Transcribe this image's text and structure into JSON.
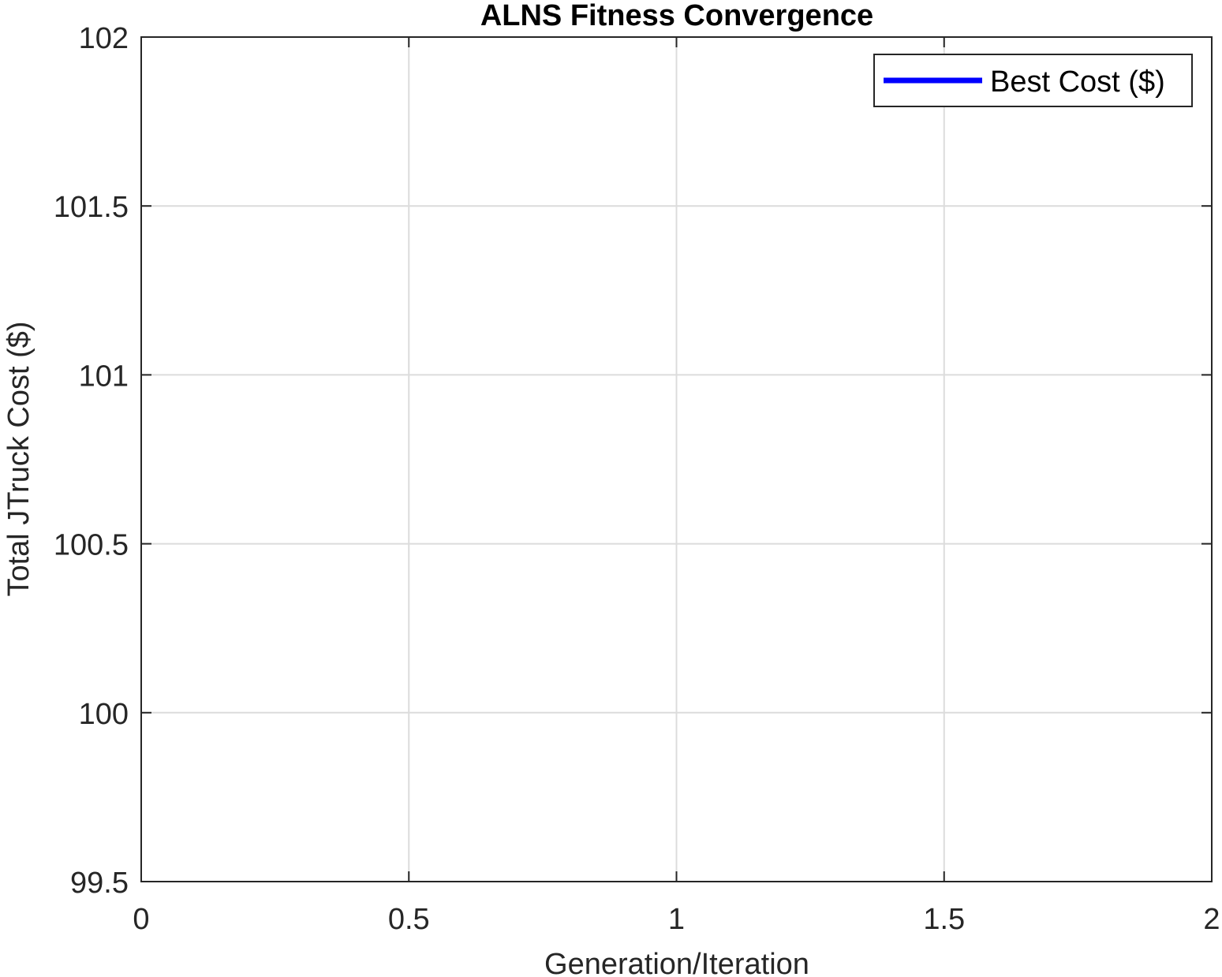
{
  "chart_data": {
    "type": "line",
    "title": "ALNS Fitness Convergence",
    "xlabel": "Generation/Iteration",
    "ylabel": "Total JTruck Cost ($)",
    "xlim": [
      0,
      2
    ],
    "ylim": [
      99.5,
      102
    ],
    "x_ticks": [
      0,
      0.5,
      1,
      1.5,
      2
    ],
    "x_tick_labels": [
      "0",
      "0.5",
      "1",
      "1.5",
      "2"
    ],
    "y_ticks": [
      99.5,
      100,
      100.5,
      101,
      101.5,
      102
    ],
    "y_tick_labels": [
      "99.5",
      "100",
      "100.5",
      "101",
      "101.5",
      "102"
    ],
    "grid": true,
    "legend_position": "top-right",
    "series": [
      {
        "name": "Best Cost ($)",
        "color": "#0000ff",
        "x": [],
        "y": []
      }
    ]
  }
}
